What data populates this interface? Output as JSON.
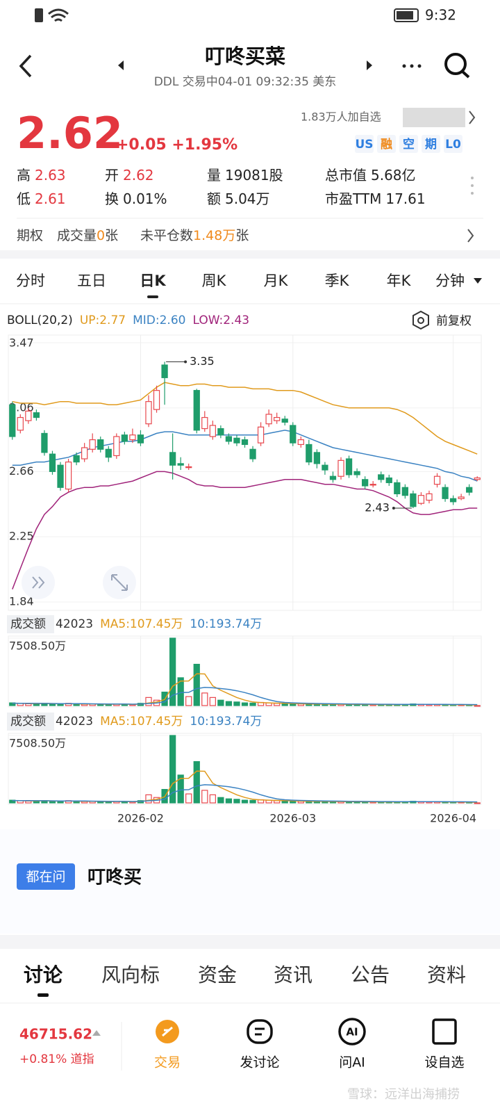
{
  "status_bar": {
    "time": "9:32"
  },
  "header": {
    "title": "叮咚买菜",
    "subtitle": "DDL 交易中04-01 09:32:35 美东"
  },
  "quote": {
    "price": "2.62",
    "change": "+0.05 +1.95%",
    "watchers": "1.83万人加自选",
    "tags": [
      {
        "text": "US",
        "color": "#2f7fe0"
      },
      {
        "text": "融",
        "color": "#f08a1c"
      },
      {
        "text": "空",
        "color": "#2f7fe0"
      },
      {
        "text": "期",
        "color": "#2f7fe0"
      },
      {
        "text": "L0",
        "color": "#2f7fe0"
      }
    ],
    "stats": [
      {
        "label": "高",
        "value": "2.63",
        "color": "#e3373f"
      },
      {
        "label": "开",
        "value": "2.62",
        "color": "#e3373f"
      },
      {
        "label": "量",
        "value": "19081股",
        "color": "#222222"
      },
      {
        "label": "总市值",
        "value": "5.68亿",
        "color": "#222222"
      },
      {
        "label": "低",
        "value": "2.61",
        "color": "#e3373f"
      },
      {
        "label": "换",
        "value": "0.01%",
        "color": "#222222"
      },
      {
        "label": "额",
        "value": "5.04万",
        "color": "#222222"
      },
      {
        "label": "市盈TTM",
        "value": "17.61",
        "color": "#222222"
      }
    ],
    "options": {
      "label": "期权",
      "volume_label": "成交量",
      "volume": "0",
      "unit": "张",
      "oi_label": "未平仓数",
      "oi": "1.48万",
      "oi_unit": "张"
    }
  },
  "period_tabs": {
    "items": [
      "分时",
      "五日",
      "日K",
      "周K",
      "月K",
      "季K",
      "年K",
      "分钟"
    ],
    "active": 2
  },
  "chart_data": [
    {
      "type": "candlestick",
      "title": "BOLL(20,2)",
      "annotation": "前复权",
      "up_color": "#e8474d",
      "down_color": "#1f9d6b",
      "ylim": [
        1.84,
        3.47
      ],
      "yticks": [
        3.47,
        3.06,
        2.66,
        2.25,
        1.84
      ],
      "categories": [
        null,
        null,
        null,
        null,
        null,
        null,
        null,
        null,
        null,
        null,
        null,
        null,
        null,
        null,
        null,
        null,
        "2026-02",
        null,
        null,
        null,
        null,
        null,
        null,
        null,
        null,
        null,
        null,
        null,
        null,
        null,
        null,
        null,
        null,
        null,
        null,
        "2026-03",
        null,
        null,
        null,
        null,
        null,
        null,
        null,
        null,
        null,
        null,
        null,
        null,
        null,
        null,
        null,
        null,
        null,
        null,
        null,
        "2026-04",
        null,
        null,
        null
      ],
      "open": [
        3.08,
        2.92,
        2.98,
        3.03,
        2.9,
        2.77,
        2.7,
        2.55,
        2.76,
        2.74,
        2.8,
        2.86,
        2.8,
        2.76,
        2.89,
        2.86,
        2.89,
        2.96,
        3.05,
        3.33,
        2.78,
        2.71,
        2.69,
        3.17,
        2.93,
        2.88,
        2.93,
        2.88,
        2.87,
        2.86,
        2.8,
        2.84,
        2.96,
        2.98,
        2.99,
        2.95,
        2.83,
        2.83,
        2.78,
        2.7,
        2.63,
        2.63,
        2.74,
        2.66,
        2.61,
        2.58,
        2.64,
        2.62,
        2.59,
        2.56,
        2.52,
        2.46,
        2.48,
        2.58,
        2.56,
        2.49,
        2.49,
        2.56,
        2.61
      ],
      "high": [
        3.1,
        3.02,
        3.06,
        3.05,
        2.92,
        2.79,
        2.72,
        2.74,
        2.78,
        2.84,
        2.9,
        2.88,
        2.82,
        2.9,
        2.91,
        2.93,
        2.92,
        3.14,
        3.2,
        3.35,
        2.9,
        2.75,
        2.71,
        3.18,
        3.04,
        2.98,
        2.95,
        2.9,
        2.89,
        2.88,
        2.82,
        2.97,
        3.05,
        3.03,
        3.01,
        2.97,
        2.88,
        2.86,
        2.8,
        2.72,
        2.66,
        2.75,
        2.76,
        2.68,
        2.63,
        2.6,
        2.66,
        2.64,
        2.61,
        2.58,
        2.54,
        2.53,
        2.54,
        2.65,
        2.58,
        2.51,
        2.52,
        2.58,
        2.63
      ],
      "low": [
        2.86,
        2.9,
        2.96,
        2.98,
        2.76,
        2.64,
        2.54,
        2.53,
        2.7,
        2.72,
        2.78,
        2.78,
        2.72,
        2.74,
        2.83,
        2.84,
        2.82,
        2.94,
        3.03,
        3.08,
        2.61,
        2.67,
        2.67,
        2.9,
        2.91,
        2.86,
        2.87,
        2.83,
        2.82,
        2.81,
        2.72,
        2.82,
        2.94,
        2.96,
        2.95,
        2.82,
        2.81,
        2.7,
        2.68,
        2.64,
        2.59,
        2.61,
        2.62,
        2.62,
        2.55,
        2.56,
        2.59,
        2.57,
        2.5,
        2.49,
        2.43,
        2.45,
        2.46,
        2.56,
        2.47,
        2.45,
        2.48,
        2.51,
        2.6
      ],
      "close": [
        2.88,
        3.0,
        3.04,
        3.0,
        2.78,
        2.66,
        2.56,
        2.72,
        2.72,
        2.81,
        2.86,
        2.8,
        2.75,
        2.88,
        2.85,
        2.89,
        2.84,
        3.1,
        3.17,
        3.25,
        2.7,
        2.7,
        2.69,
        2.92,
        3.0,
        2.95,
        2.89,
        2.85,
        2.84,
        2.83,
        2.74,
        2.94,
        3.02,
        3.0,
        2.97,
        2.84,
        2.86,
        2.72,
        2.71,
        2.67,
        2.61,
        2.73,
        2.64,
        2.64,
        2.57,
        2.58,
        2.61,
        2.59,
        2.52,
        2.51,
        2.44,
        2.51,
        2.52,
        2.63,
        2.49,
        2.47,
        2.5,
        2.53,
        2.62
      ],
      "series": [
        {
          "name": "UP:2.77",
          "color": "#e09a1c",
          "values": [
            3.1,
            3.09,
            3.09,
            3.09,
            3.08,
            3.09,
            3.1,
            3.1,
            3.09,
            3.09,
            3.09,
            3.09,
            3.08,
            3.08,
            3.09,
            3.1,
            3.11,
            3.15,
            3.19,
            3.22,
            3.21,
            3.2,
            3.2,
            3.21,
            3.21,
            3.2,
            3.2,
            3.19,
            3.19,
            3.19,
            3.18,
            3.18,
            3.18,
            3.17,
            3.17,
            3.17,
            3.16,
            3.14,
            3.12,
            3.1,
            3.08,
            3.07,
            3.06,
            3.06,
            3.06,
            3.06,
            3.06,
            3.06,
            3.05,
            3.03,
            3.0,
            2.96,
            2.92,
            2.88,
            2.85,
            2.83,
            2.81,
            2.79,
            2.77
          ]
        },
        {
          "name": "MID:2.60",
          "color": "#3a82c2",
          "values": [
            2.7,
            2.7,
            2.71,
            2.72,
            2.72,
            2.73,
            2.74,
            2.75,
            2.77,
            2.79,
            2.81,
            2.82,
            2.83,
            2.84,
            2.85,
            2.85,
            2.86,
            2.88,
            2.9,
            2.91,
            2.91,
            2.9,
            2.89,
            2.89,
            2.89,
            2.89,
            2.89,
            2.89,
            2.89,
            2.89,
            2.89,
            2.89,
            2.9,
            2.91,
            2.92,
            2.91,
            2.89,
            2.87,
            2.85,
            2.83,
            2.81,
            2.8,
            2.79,
            2.78,
            2.77,
            2.76,
            2.75,
            2.74,
            2.73,
            2.72,
            2.71,
            2.7,
            2.69,
            2.68,
            2.66,
            2.65,
            2.63,
            2.62,
            2.6
          ]
        },
        {
          "name": "LOW:2.43",
          "color": "#a0237a",
          "values": [
            1.92,
            2.05,
            2.18,
            2.3,
            2.39,
            2.44,
            2.5,
            2.53,
            2.55,
            2.56,
            2.56,
            2.57,
            2.57,
            2.58,
            2.59,
            2.6,
            2.62,
            2.64,
            2.66,
            2.66,
            2.65,
            2.63,
            2.61,
            2.58,
            2.57,
            2.57,
            2.56,
            2.56,
            2.56,
            2.56,
            2.57,
            2.58,
            2.59,
            2.6,
            2.61,
            2.61,
            2.61,
            2.6,
            2.59,
            2.58,
            2.58,
            2.57,
            2.56,
            2.55,
            2.55,
            2.54,
            2.52,
            2.5,
            2.47,
            2.43,
            2.4,
            2.39,
            2.39,
            2.4,
            2.41,
            2.42,
            2.42,
            2.43,
            2.43
          ]
        }
      ]
    },
    {
      "type": "bar",
      "title": "成交额",
      "count": "42023",
      "ylim": [
        0,
        7508.5
      ],
      "yticks": [
        {
          "value": 7508.5,
          "label": "7508.50万"
        }
      ],
      "values": [
        300,
        250,
        200,
        180,
        260,
        150,
        200,
        250,
        120,
        150,
        180,
        130,
        150,
        180,
        120,
        110,
        250,
        900,
        600,
        1500,
        7508.5,
        3100,
        1000,
        4600,
        1400,
        900,
        600,
        450,
        400,
        300,
        280,
        350,
        300,
        250,
        200,
        220,
        180,
        150,
        200,
        150,
        180,
        160,
        120,
        100,
        130,
        110,
        90,
        100,
        140,
        120,
        180,
        150,
        110,
        130,
        100,
        90,
        80,
        70,
        4.2
      ],
      "series": [
        {
          "name": "MA5:107.45万",
          "color": "#e09a1c",
          "values": [
            250,
            240,
            230,
            220,
            238,
            208,
            198,
            208,
            196,
            174,
            180,
            166,
            146,
            158,
            152,
            134,
            158,
            292,
            396,
            672,
            2152,
            2722,
            2742,
            3542,
            3522,
            2200,
            1700,
            1300,
            900,
            600,
            400,
            330,
            300,
            270,
            250,
            230,
            200,
            180,
            170,
            160,
            155,
            150,
            140,
            130,
            120,
            115,
            110,
            105,
            110,
            115,
            125,
            130,
            128,
            120,
            110,
            100,
            90,
            80,
            69
          ]
        },
        {
          "name": "10:193.74万",
          "color": "#3a82c2",
          "values": [
            260,
            255,
            250,
            245,
            240,
            230,
            220,
            218,
            215,
            206,
            194,
            187,
            172,
            177,
            174,
            154,
            169,
            229,
            277,
            406,
            1145,
            1441,
            1470,
            1892,
            2024,
            1980,
            1900,
            1800,
            1650,
            1450,
            1200,
            900,
            650,
            450,
            350,
            300,
            270,
            250,
            230,
            210,
            200,
            190,
            180,
            170,
            160,
            155,
            150,
            145,
            140,
            138,
            136,
            134,
            132,
            130,
            128,
            124,
            120,
            115,
            106
          ]
        }
      ]
    }
  ],
  "ask": {
    "badge": "都在问",
    "text": "叮咚买"
  },
  "tabs": {
    "items": [
      "讨论",
      "风向标",
      "资金",
      "资讯",
      "公告",
      "资料"
    ],
    "active": 0
  },
  "bottom": {
    "index_value": "46715.62",
    "index_change": "+0.81% 道指",
    "nav": [
      "交易",
      "发讨论",
      "问AI",
      "设自选"
    ],
    "watermark": "雪球：远洋出海捕捞"
  }
}
